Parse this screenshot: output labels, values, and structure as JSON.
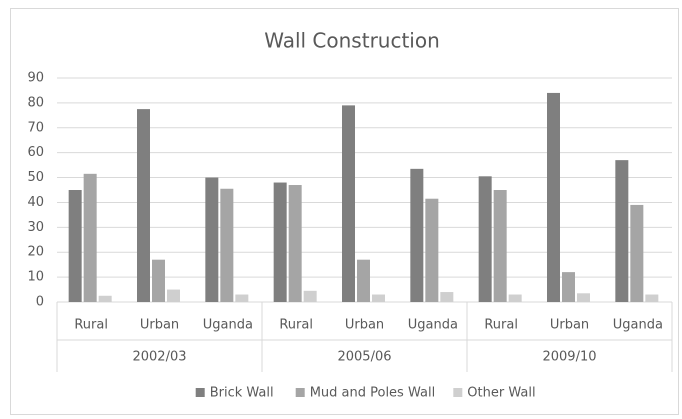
{
  "chart_data": {
    "type": "bar",
    "title": "Wall Construction",
    "groups": [
      "2002/03",
      "2005/06",
      "2009/10"
    ],
    "categories": [
      "Rural",
      "Urban",
      "Uganda",
      "Rural",
      "Urban",
      "Uganda",
      "Rural",
      "Urban",
      "Uganda"
    ],
    "series": [
      {
        "name": "Brick Wall",
        "color": "#7f7f7f",
        "values": [
          45,
          77.5,
          50,
          48,
          79,
          53.5,
          50.5,
          84,
          57
        ]
      },
      {
        "name": "Mud and Poles Wall",
        "color": "#a5a5a5",
        "values": [
          51.5,
          17,
          45.5,
          47,
          17,
          41.5,
          45,
          12,
          39
        ]
      },
      {
        "name": "Other Wall",
        "color": "#cfcfcf",
        "values": [
          2.5,
          5,
          3,
          4.5,
          3,
          4,
          3,
          3.5,
          3
        ]
      }
    ],
    "ylim": [
      0,
      90
    ],
    "yticks": [
      0,
      10,
      20,
      30,
      40,
      50,
      60,
      70,
      80,
      90
    ],
    "grid": true,
    "legend": "bottom"
  }
}
